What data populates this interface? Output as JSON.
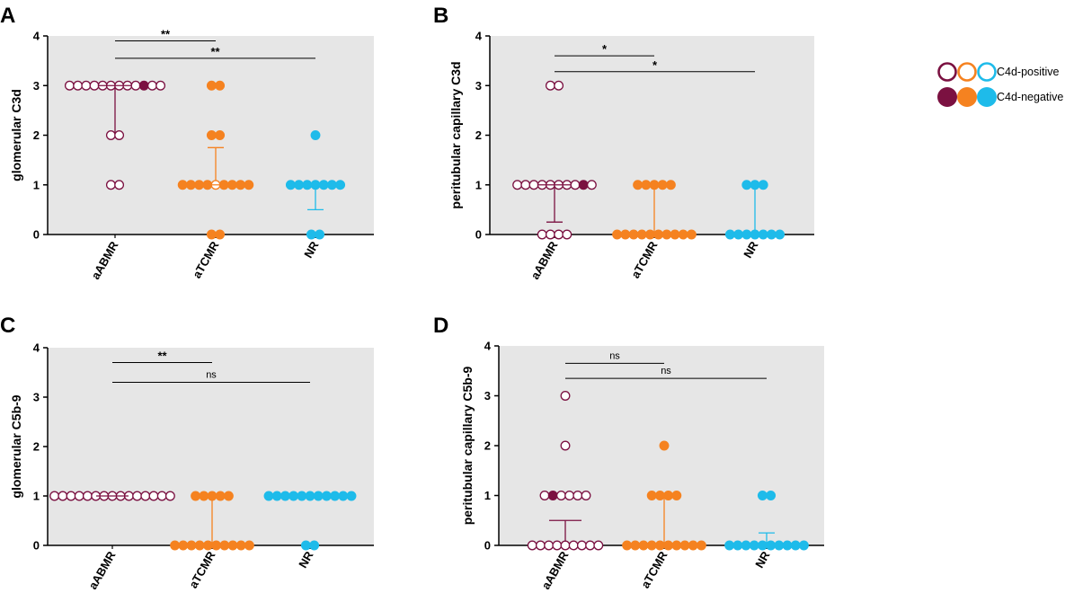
{
  "legend": {
    "positive_label": "C4d-positive",
    "negative_label": "C4d-negative",
    "colors": [
      "#7B1141",
      "#F58220",
      "#1EBBEA"
    ]
  },
  "chart_data": [
    {
      "type": "scatter",
      "panel": "A",
      "ylabel": "glomerular  C3d",
      "categories": [
        "aABMR",
        "aTCMR",
        "NR"
      ],
      "ylim": [
        0,
        4
      ],
      "yticks": [
        "0",
        "1",
        "2",
        "3",
        "4"
      ],
      "colors": [
        "#7B1141",
        "#F58220",
        "#1EBBEA"
      ],
      "groups": [
        {
          "name": "aABMR",
          "points": [
            {
              "y": 3,
              "count": 12,
              "filled": [
                9
              ]
            },
            {
              "y": 2,
              "count": 2,
              "filled": []
            },
            {
              "y": 1,
              "count": 2,
              "filled": []
            }
          ],
          "median": 3,
          "q1": 2,
          "q3": 3
        },
        {
          "name": "aTCMR",
          "points": [
            {
              "y": 3,
              "count": 2,
              "filled": [
                0,
                1
              ]
            },
            {
              "y": 2,
              "count": 2,
              "filled": [
                0,
                1
              ]
            },
            {
              "y": 1,
              "count": 9,
              "filled": [
                0,
                1,
                2,
                3,
                5,
                6,
                7,
                8
              ]
            },
            {
              "y": 0,
              "count": 2,
              "filled": [
                0,
                1
              ]
            }
          ],
          "median": 1,
          "q1": 1,
          "q3": 1.75
        },
        {
          "name": "NR",
          "points": [
            {
              "y": 2,
              "count": 1,
              "filled": [
                0
              ]
            },
            {
              "y": 1,
              "count": 7,
              "filled": [
                0,
                1,
                2,
                3,
                4,
                5,
                6
              ]
            },
            {
              "y": 0,
              "count": 2,
              "filled": [
                0,
                1
              ]
            }
          ],
          "median": 1,
          "q1": 0.5,
          "q3": 1
        }
      ],
      "comparisons": [
        {
          "from": "aABMR",
          "to": "aTCMR",
          "label": "**",
          "y": 3.9
        },
        {
          "from": "aABMR",
          "to": "NR",
          "label": "**",
          "y": 3.55
        }
      ]
    },
    {
      "type": "scatter",
      "panel": "B",
      "ylabel": "peritubular capillary C3d",
      "categories": [
        "aABMR",
        "aTCMR",
        "NR"
      ],
      "ylim": [
        0,
        4
      ],
      "yticks": [
        "0",
        "1",
        "2",
        "3",
        "4"
      ],
      "colors": [
        "#7B1141",
        "#F58220",
        "#1EBBEA"
      ],
      "groups": [
        {
          "name": "aABMR",
          "points": [
            {
              "y": 3,
              "count": 2,
              "filled": []
            },
            {
              "y": 1,
              "count": 10,
              "filled": [
                8
              ]
            },
            {
              "y": 0,
              "count": 4,
              "filled": []
            }
          ],
          "median": 1,
          "q1": 0.25,
          "q3": 1
        },
        {
          "name": "aTCMR",
          "points": [
            {
              "y": 1,
              "count": 5,
              "filled": [
                0,
                1,
                2,
                3,
                4
              ]
            },
            {
              "y": 0,
              "count": 10,
              "filled": [
                0,
                1,
                2,
                3,
                4,
                5,
                6,
                7,
                8,
                9
              ]
            }
          ],
          "median": 0,
          "q1": 0,
          "q3": 1
        },
        {
          "name": "NR",
          "points": [
            {
              "y": 1,
              "count": 3,
              "filled": [
                0,
                1,
                2
              ]
            },
            {
              "y": 0,
              "count": 7,
              "filled": [
                0,
                1,
                2,
                3,
                4,
                5,
                6
              ]
            }
          ],
          "median": 0,
          "q1": 0,
          "q3": 1
        }
      ],
      "comparisons": [
        {
          "from": "aABMR",
          "to": "aTCMR",
          "label": "*",
          "y": 3.6
        },
        {
          "from": "aABMR",
          "to": "NR",
          "label": "*",
          "y": 3.28
        }
      ]
    },
    {
      "type": "scatter",
      "panel": "C",
      "ylabel": "glomerular C5b-9",
      "categories": [
        "aABMR",
        "aTCMR",
        "NR"
      ],
      "ylim": [
        0,
        4
      ],
      "yticks": [
        "0",
        "1",
        "2",
        "3",
        "4"
      ],
      "colors": [
        "#7B1141",
        "#F58220",
        "#1EBBEA"
      ],
      "groups": [
        {
          "name": "aABMR",
          "points": [
            {
              "y": 1,
              "count": 15,
              "filled": []
            }
          ],
          "median": 1,
          "q1": 1,
          "q3": 1
        },
        {
          "name": "aTCMR",
          "points": [
            {
              "y": 1,
              "count": 5,
              "filled": [
                0,
                1,
                2,
                3,
                4
              ]
            },
            {
              "y": 0,
              "count": 10,
              "filled": [
                0,
                1,
                2,
                3,
                4,
                5,
                6,
                7,
                8,
                9
              ]
            }
          ],
          "median": 0,
          "q1": 0,
          "q3": 1
        },
        {
          "name": "NR",
          "points": [
            {
              "y": 1,
              "count": 11,
              "filled": [
                0,
                1,
                2,
                3,
                4,
                5,
                6,
                7,
                8,
                9,
                10
              ]
            },
            {
              "y": 0,
              "count": 2,
              "filled": [
                0,
                1
              ]
            }
          ],
          "median": 1,
          "q1": 1,
          "q3": 1
        }
      ],
      "comparisons": [
        {
          "from": "aABMR",
          "to": "aTCMR",
          "label": "**",
          "y": 3.7
        },
        {
          "from": "aABMR",
          "to": "NR",
          "label": "ns",
          "y": 3.3
        }
      ]
    },
    {
      "type": "scatter",
      "panel": "D",
      "ylabel": "peritubular capillary C5b-9",
      "categories": [
        "aABMR",
        "aTCMR",
        "NR"
      ],
      "ylim": [
        0,
        4
      ],
      "yticks": [
        "0",
        "1",
        "2",
        "3",
        "4"
      ],
      "colors": [
        "#7B1141",
        "#F58220",
        "#1EBBEA"
      ],
      "groups": [
        {
          "name": "aABMR",
          "points": [
            {
              "y": 3,
              "count": 1,
              "filled": []
            },
            {
              "y": 2,
              "count": 1,
              "filled": []
            },
            {
              "y": 1,
              "count": 6,
              "filled": [
                1
              ]
            },
            {
              "y": 0,
              "count": 9,
              "filled": []
            }
          ],
          "median": 0.5,
          "q1": 0,
          "q3": 0.5
        },
        {
          "name": "aTCMR",
          "points": [
            {
              "y": 2,
              "count": 1,
              "filled": [
                0
              ]
            },
            {
              "y": 1,
              "count": 4,
              "filled": [
                0,
                1,
                2,
                3
              ]
            },
            {
              "y": 0,
              "count": 10,
              "filled": [
                0,
                1,
                2,
                3,
                4,
                5,
                6,
                7,
                8,
                9
              ]
            }
          ],
          "median": 0,
          "q1": 0,
          "q3": 1
        },
        {
          "name": "NR",
          "points": [
            {
              "y": 1,
              "count": 2,
              "filled": [
                0,
                1
              ]
            },
            {
              "y": 0,
              "count": 10,
              "filled": [
                0,
                1,
                2,
                3,
                4,
                5,
                6,
                7,
                8,
                9
              ]
            }
          ],
          "median": 0,
          "q1": 0,
          "q3": 0.25
        }
      ],
      "comparisons": [
        {
          "from": "aABMR",
          "to": "aTCMR",
          "label": "ns",
          "y": 3.65
        },
        {
          "from": "aABMR",
          "to": "NR",
          "label": "ns",
          "y": 3.35
        }
      ]
    }
  ]
}
